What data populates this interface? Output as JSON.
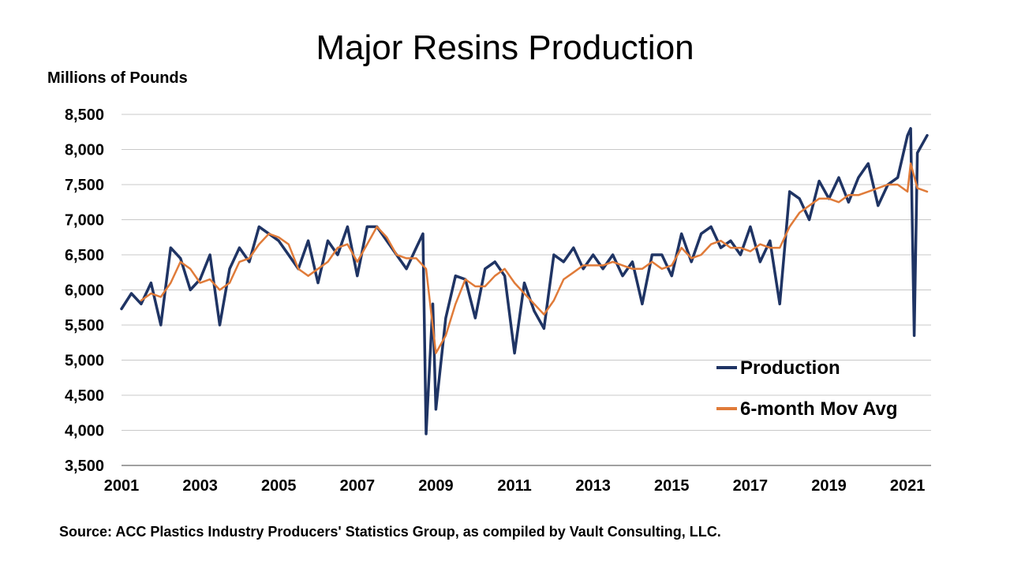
{
  "chart_data": {
    "type": "line",
    "title": "Major Resins Production",
    "ylabel": "Millions of Pounds",
    "xlabel": "",
    "ylim": [
      3500,
      8500
    ],
    "yticks": [
      3500,
      4000,
      4500,
      5000,
      5500,
      6000,
      6500,
      7000,
      7500,
      8000,
      8500
    ],
    "ytick_labels": [
      "3,500",
      "4,000",
      "4,500",
      "5,000",
      "5,500",
      "6,000",
      "6,500",
      "7,000",
      "7,500",
      "8,000",
      "8,500"
    ],
    "xlim": [
      2001.0,
      2021.6
    ],
    "xticks": [
      2001,
      2003,
      2005,
      2007,
      2009,
      2011,
      2013,
      2015,
      2017,
      2019,
      2021
    ],
    "xtick_labels": [
      "2001",
      "2003",
      "2005",
      "2007",
      "2009",
      "2011",
      "2013",
      "2015",
      "2017",
      "2019",
      "2021"
    ],
    "grid": "horizontal",
    "legend_position": "lower-right",
    "colors": {
      "production": "#1f3464",
      "moving_average": "#e07b39"
    },
    "series": [
      {
        "name": "Production",
        "x": [
          2001.0,
          2001.25,
          2001.5,
          2001.75,
          2002.0,
          2002.25,
          2002.5,
          2002.75,
          2003.0,
          2003.25,
          2003.5,
          2003.75,
          2004.0,
          2004.25,
          2004.5,
          2004.75,
          2005.0,
          2005.25,
          2005.5,
          2005.75,
          2006.0,
          2006.25,
          2006.5,
          2006.75,
          2007.0,
          2007.25,
          2007.5,
          2007.75,
          2008.0,
          2008.25,
          2008.5,
          2008.67,
          2008.75,
          2008.92,
          2009.0,
          2009.25,
          2009.5,
          2009.75,
          2010.0,
          2010.25,
          2010.5,
          2010.75,
          2011.0,
          2011.25,
          2011.5,
          2011.75,
          2012.0,
          2012.25,
          2012.5,
          2012.75,
          2013.0,
          2013.25,
          2013.5,
          2013.75,
          2014.0,
          2014.25,
          2014.5,
          2014.75,
          2015.0,
          2015.25,
          2015.5,
          2015.75,
          2016.0,
          2016.25,
          2016.5,
          2016.75,
          2017.0,
          2017.25,
          2017.5,
          2017.75,
          2018.0,
          2018.25,
          2018.5,
          2018.75,
          2019.0,
          2019.25,
          2019.5,
          2019.75,
          2020.0,
          2020.25,
          2020.5,
          2020.75,
          2021.0,
          2021.08,
          2021.17,
          2021.25,
          2021.5
        ],
        "values": [
          5730,
          5950,
          5800,
          6100,
          5500,
          6600,
          6450,
          6000,
          6150,
          6500,
          5500,
          6300,
          6600,
          6400,
          6900,
          6800,
          6700,
          6500,
          6300,
          6700,
          6100,
          6700,
          6500,
          6900,
          6200,
          6900,
          6900,
          6700,
          6500,
          6300,
          6600,
          6800,
          3950,
          5800,
          4300,
          5600,
          6200,
          6150,
          5600,
          6300,
          6400,
          6200,
          5100,
          6100,
          5700,
          5450,
          6500,
          6400,
          6600,
          6300,
          6500,
          6300,
          6500,
          6200,
          6400,
          5800,
          6500,
          6500,
          6200,
          6800,
          6400,
          6800,
          6900,
          6600,
          6700,
          6500,
          6900,
          6400,
          6700,
          5800,
          7400,
          7300,
          7000,
          7550,
          7300,
          7600,
          7250,
          7600,
          7800,
          7200,
          7500,
          7600,
          8200,
          8300,
          5350,
          7950,
          8200
        ]
      },
      {
        "name": "6-month Mov Avg",
        "x": [
          2001.5,
          2001.75,
          2002.0,
          2002.25,
          2002.5,
          2002.75,
          2003.0,
          2003.25,
          2003.5,
          2003.75,
          2004.0,
          2004.25,
          2004.5,
          2004.75,
          2005.0,
          2005.25,
          2005.5,
          2005.75,
          2006.0,
          2006.25,
          2006.5,
          2006.75,
          2007.0,
          2007.25,
          2007.5,
          2007.75,
          2008.0,
          2008.25,
          2008.5,
          2008.75,
          2009.0,
          2009.25,
          2009.5,
          2009.75,
          2010.0,
          2010.25,
          2010.5,
          2010.75,
          2011.0,
          2011.25,
          2011.5,
          2011.75,
          2012.0,
          2012.25,
          2012.5,
          2012.75,
          2013.0,
          2013.25,
          2013.5,
          2013.75,
          2014.0,
          2014.25,
          2014.5,
          2014.75,
          2015.0,
          2015.25,
          2015.5,
          2015.75,
          2016.0,
          2016.25,
          2016.5,
          2016.75,
          2017.0,
          2017.25,
          2017.5,
          2017.75,
          2018.0,
          2018.25,
          2018.5,
          2018.75,
          2019.0,
          2019.25,
          2019.5,
          2019.75,
          2020.0,
          2020.25,
          2020.5,
          2020.75,
          2021.0,
          2021.08,
          2021.25,
          2021.5
        ],
        "values": [
          5850,
          5950,
          5900,
          6100,
          6400,
          6300,
          6100,
          6150,
          6000,
          6100,
          6400,
          6450,
          6650,
          6800,
          6750,
          6650,
          6300,
          6200,
          6300,
          6400,
          6600,
          6650,
          6400,
          6650,
          6900,
          6750,
          6500,
          6450,
          6450,
          6300,
          5100,
          5350,
          5800,
          6150,
          6050,
          6050,
          6200,
          6300,
          6100,
          5950,
          5800,
          5650,
          5850,
          6150,
          6250,
          6350,
          6350,
          6350,
          6400,
          6350,
          6300,
          6300,
          6400,
          6300,
          6350,
          6600,
          6450,
          6500,
          6650,
          6700,
          6600,
          6600,
          6550,
          6650,
          6600,
          6600,
          6900,
          7100,
          7200,
          7300,
          7300,
          7250,
          7350,
          7350,
          7400,
          7450,
          7500,
          7500,
          7400,
          7800,
          7450,
          7400
        ]
      }
    ]
  },
  "source": "Source: ACC Plastics Industry Producers' Statistics Group, as compiled by Vault Consulting, LLC."
}
